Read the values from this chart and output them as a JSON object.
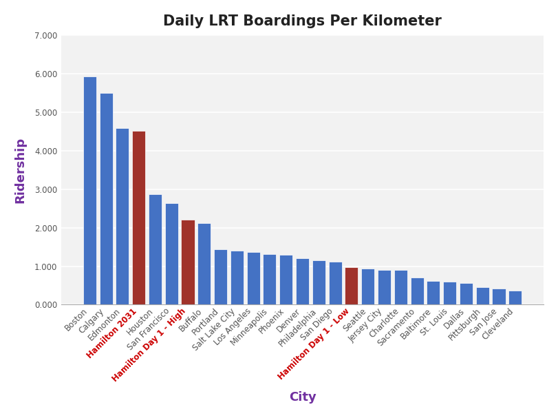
{
  "title": "Daily LRT Boardings Per Kilometer",
  "xlabel": "City",
  "ylabel": "Ridership",
  "categories": [
    "Boston",
    "Calgary",
    "Edmonton",
    "Hamilton 2031",
    "Houston",
    "San Francisco",
    "Hamilton Day 1 - High",
    "Buffalo",
    "Portland",
    "Salt Lake City",
    "Los Angeles",
    "Minneapolis",
    "Phoenix",
    "Denver",
    "Philadelphia",
    "San Diego",
    "Hamilton Day 1 - Low",
    "Seattle",
    "Jersey City",
    "Charlotte",
    "Sacramento",
    "Baltimore",
    "St. Louis",
    "Dallas",
    "Pittsburgh",
    "San Jose",
    "Cleveland"
  ],
  "values": [
    5.93,
    5.49,
    4.58,
    4.52,
    2.87,
    2.63,
    2.21,
    2.12,
    1.43,
    1.4,
    1.37,
    1.31,
    1.3,
    1.2,
    1.16,
    1.12,
    0.97,
    0.94,
    0.91,
    0.91,
    0.7,
    0.62,
    0.6,
    0.56,
    0.46,
    0.42,
    0.36
  ],
  "bar_colors": [
    "#4472C4",
    "#4472C4",
    "#4472C4",
    "#A0322A",
    "#4472C4",
    "#4472C4",
    "#A0322A",
    "#4472C4",
    "#4472C4",
    "#4472C4",
    "#4472C4",
    "#4472C4",
    "#4472C4",
    "#4472C4",
    "#4472C4",
    "#4472C4",
    "#A0322A",
    "#4472C4",
    "#4472C4",
    "#4472C4",
    "#4472C4",
    "#4472C4",
    "#4472C4",
    "#4472C4",
    "#4472C4",
    "#4472C4",
    "#4472C4"
  ],
  "special_label_indices": [
    3,
    6,
    16
  ],
  "special_label_color": "#CC0000",
  "ylim": [
    0,
    7.0
  ],
  "yticks": [
    0.0,
    1.0,
    2.0,
    3.0,
    4.0,
    5.0,
    6.0,
    7.0
  ],
  "ytick_labels": [
    "0.000",
    "1.000",
    "2.000",
    "3.000",
    "4.000",
    "5.000",
    "6.000",
    "7.000"
  ],
  "title_fontsize": 15,
  "axis_label_fontsize": 13,
  "tick_label_fontsize": 8.5,
  "label_color": "#7030A0",
  "background_color": "#FFFFFF",
  "plot_area_color": "#F2F2F2",
  "grid_color": "#FFFFFF"
}
